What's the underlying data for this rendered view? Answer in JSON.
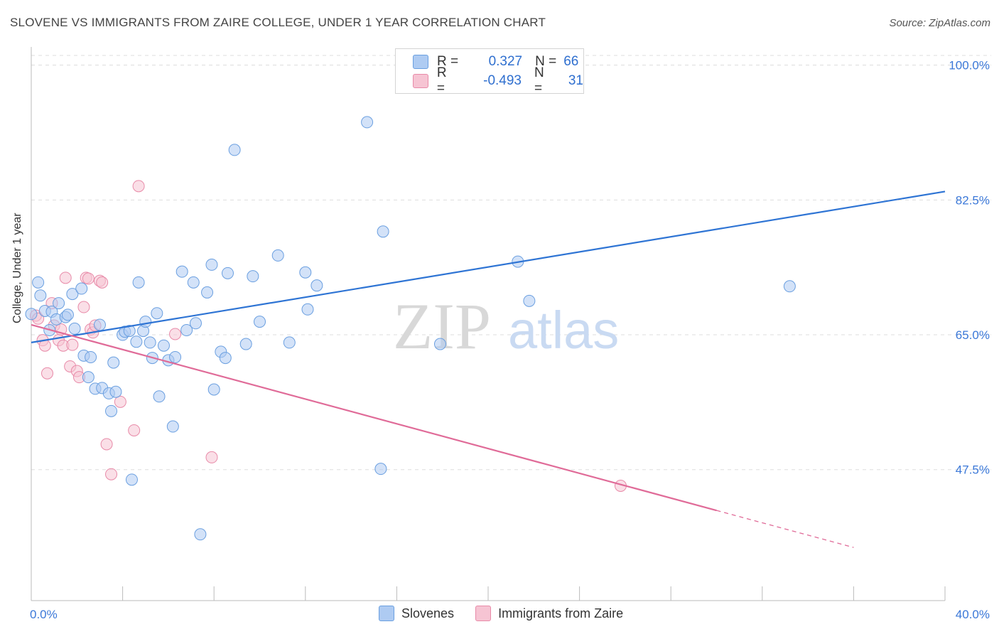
{
  "header": {
    "title": "SLOVENE VS IMMIGRANTS FROM ZAIRE COLLEGE, UNDER 1 YEAR CORRELATION CHART",
    "source": "Source: ZipAtlas.com"
  },
  "watermark": {
    "part1": "ZIP",
    "part2": "atlas"
  },
  "legend": {
    "rows": [
      {
        "r_label": "R =",
        "r_value": "0.327",
        "n_label": "N =",
        "n_value": "66",
        "color": "#aecbf2"
      },
      {
        "r_label": "R =",
        "r_value": "-0.493",
        "n_label": "N =",
        "n_value": "31",
        "color": "#f6bfd0"
      }
    ]
  },
  "bottom_legend": [
    {
      "label": "Slovenes",
      "color": "#aecbf2"
    },
    {
      "label": "Immigrants from Zaire",
      "color": "#f6bfd0"
    }
  ],
  "colors": {
    "blue_point_fill": "#aecbf2",
    "blue_point_stroke": "#6a9fe0",
    "blue_line": "#2e74d4",
    "pink_point_fill": "#f6c4d3",
    "pink_point_stroke": "#e88aa8",
    "pink_line": "#e06b98",
    "grid": "#dddddd",
    "tick_label": "#3b78d8"
  },
  "chart_data": {
    "type": "scatter",
    "title": "SLOVENE VS IMMIGRANTS FROM ZAIRE COLLEGE, UNDER 1 YEAR CORRELATION CHART",
    "xlabel": "",
    "ylabel": "College, Under 1 year",
    "xlim": [
      0,
      40
    ],
    "ylim": [
      30.5,
      102
    ],
    "x_tick_labels": [
      "0.0%",
      "40.0%"
    ],
    "y_ticks": [
      47.5,
      65.0,
      82.5,
      100.0
    ],
    "y_tick_labels": [
      "47.5%",
      "65.0%",
      "82.5%",
      "100.0%"
    ],
    "grid": "horizontal dashed",
    "legend_position": "top-center",
    "series": [
      {
        "name": "Slovenes",
        "values": [
          [
            0.0,
            67.7
          ],
          [
            0.3,
            71.8
          ],
          [
            0.4,
            70.1
          ],
          [
            0.6,
            68.1
          ],
          [
            0.8,
            65.6
          ],
          [
            0.9,
            68.0
          ],
          [
            1.1,
            67.0
          ],
          [
            1.2,
            69.1
          ],
          [
            1.5,
            67.3
          ],
          [
            1.6,
            67.6
          ],
          [
            1.8,
            70.3
          ],
          [
            1.9,
            65.8
          ],
          [
            2.2,
            71.0
          ],
          [
            2.3,
            62.3
          ],
          [
            2.5,
            59.5
          ],
          [
            2.6,
            62.1
          ],
          [
            2.8,
            58.0
          ],
          [
            3.0,
            66.3
          ],
          [
            3.1,
            58.1
          ],
          [
            3.4,
            57.4
          ],
          [
            3.5,
            55.1
          ],
          [
            3.7,
            57.6
          ],
          [
            3.6,
            61.4
          ],
          [
            4.0,
            65.0
          ],
          [
            4.1,
            65.4
          ],
          [
            4.3,
            65.5
          ],
          [
            4.4,
            46.2
          ],
          [
            4.6,
            64.1
          ],
          [
            4.7,
            71.8
          ],
          [
            4.9,
            65.5
          ],
          [
            5.0,
            66.7
          ],
          [
            5.2,
            64.0
          ],
          [
            5.3,
            62.0
          ],
          [
            5.5,
            67.8
          ],
          [
            5.6,
            57.0
          ],
          [
            5.8,
            63.6
          ],
          [
            6.0,
            61.7
          ],
          [
            6.2,
            53.1
          ],
          [
            6.3,
            62.1
          ],
          [
            6.6,
            73.2
          ],
          [
            6.8,
            65.6
          ],
          [
            7.1,
            71.8
          ],
          [
            7.2,
            66.5
          ],
          [
            7.4,
            39.1
          ],
          [
            7.7,
            70.5
          ],
          [
            7.9,
            74.1
          ],
          [
            8.0,
            57.9
          ],
          [
            8.3,
            62.8
          ],
          [
            8.5,
            62.0
          ],
          [
            8.6,
            73.0
          ],
          [
            8.9,
            89.0
          ],
          [
            9.4,
            63.8
          ],
          [
            9.7,
            72.6
          ],
          [
            10.0,
            66.7
          ],
          [
            10.8,
            75.3
          ],
          [
            11.3,
            64.0
          ],
          [
            12.0,
            73.1
          ],
          [
            12.1,
            68.3
          ],
          [
            12.5,
            71.4
          ],
          [
            14.7,
            92.6
          ],
          [
            15.3,
            47.6
          ],
          [
            15.4,
            78.4
          ],
          [
            17.9,
            63.8
          ],
          [
            21.3,
            74.5
          ],
          [
            21.8,
            69.4
          ],
          [
            33.2,
            71.3
          ]
        ],
        "trendline": {
          "x": [
            0.0,
            40.0
          ],
          "y": [
            64.0,
            83.6
          ]
        }
      },
      {
        "name": "Immigrants from Zaire",
        "values": [
          [
            0.2,
            67.5
          ],
          [
            0.3,
            67.1
          ],
          [
            0.5,
            64.3
          ],
          [
            0.6,
            63.6
          ],
          [
            0.7,
            60.0
          ],
          [
            0.9,
            69.1
          ],
          [
            1.0,
            66.2
          ],
          [
            1.2,
            64.3
          ],
          [
            1.3,
            65.7
          ],
          [
            1.4,
            63.6
          ],
          [
            1.5,
            72.4
          ],
          [
            1.7,
            60.9
          ],
          [
            1.8,
            63.7
          ],
          [
            2.0,
            60.3
          ],
          [
            2.1,
            59.5
          ],
          [
            2.3,
            68.6
          ],
          [
            2.4,
            72.4
          ],
          [
            2.5,
            72.3
          ],
          [
            2.6,
            65.7
          ],
          [
            2.7,
            65.3
          ],
          [
            2.8,
            66.2
          ],
          [
            3.0,
            72.0
          ],
          [
            3.1,
            71.8
          ],
          [
            3.3,
            50.8
          ],
          [
            3.5,
            46.9
          ],
          [
            3.9,
            56.3
          ],
          [
            4.5,
            52.6
          ],
          [
            4.7,
            84.3
          ],
          [
            6.3,
            65.1
          ],
          [
            7.9,
            49.1
          ],
          [
            25.8,
            45.4
          ]
        ],
        "trendline": {
          "x": [
            0.0,
            30.0
          ],
          "y": [
            66.3,
            42.2
          ]
        },
        "trendline_dashed_extension": {
          "x": [
            30.0,
            36.0
          ],
          "y": [
            42.2,
            37.4
          ]
        }
      }
    ]
  }
}
